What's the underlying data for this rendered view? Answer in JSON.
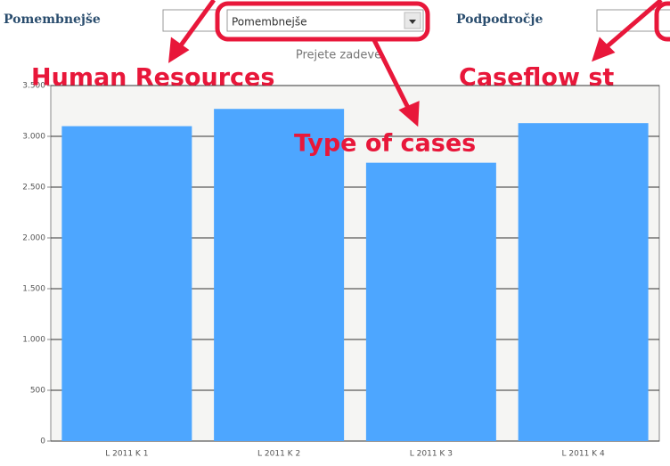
{
  "filters": [
    {
      "label": "Pomembnejše",
      "value": ""
    },
    {
      "label": null,
      "value": "Pomembnejše"
    },
    {
      "label": "Podpodročje",
      "value": ""
    }
  ],
  "annotations": [
    "Human Resources",
    "Type of cases",
    "Caseflow st"
  ],
  "chart_data": {
    "type": "bar",
    "title": "Prejete zadeve",
    "categories": [
      "L 2011 K 1",
      "L 2011 K 2",
      "L 2011 K 3",
      "L 2011 K 4"
    ],
    "values": [
      3100,
      3270,
      2740,
      3130
    ],
    "color": "#4da6ff",
    "ylim": [
      0,
      3500
    ],
    "yticks": [
      0,
      500,
      {
        "value": 1000,
        "label": "1.000"
      },
      {
        "value": 1500,
        "label": "1.500"
      },
      {
        "value": 2000,
        "label": "2.000"
      },
      {
        "value": 2500,
        "label": "2.500"
      },
      {
        "value": 3000,
        "label": "3.000"
      },
      {
        "value": 3500,
        "label": "3.500"
      }
    ],
    "grid": true
  }
}
